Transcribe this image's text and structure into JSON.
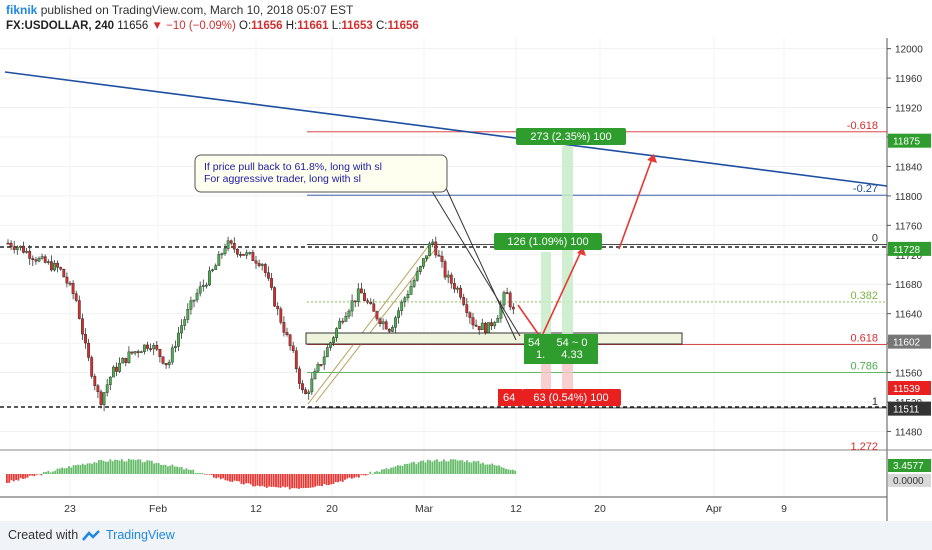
{
  "header": {
    "author": "fiknik",
    "published_text": "published on TradingView.com, March 10, 2018 05:07 EST",
    "symbol": "FX:USDOLLAR, 240",
    "last": "11656",
    "change": "−10 (−0.09%)",
    "open_label": "O:",
    "open": "11656",
    "high_label": "H:",
    "high": "11661",
    "low_label": "L:",
    "low": "11653",
    "close_label": "C:",
    "close": "11656"
  },
  "footer": {
    "created_with": "Created with",
    "brand": "TradingView"
  },
  "colors": {
    "up": "#4caf50",
    "down": "#d32f2f",
    "trendline": "#1e4fa0",
    "fib": "#d32f2f",
    "green_box": "#2e9d2e",
    "red_box": "#e82020"
  },
  "chart_data": {
    "type": "candlestick",
    "price_axis": {
      "ticks": [
        12000,
        11960,
        11920,
        11880,
        11840,
        11800,
        11760,
        11720,
        11680,
        11640,
        11600,
        11560,
        11520,
        11480
      ],
      "range": [
        11448,
        12012
      ]
    },
    "price_badges": [
      {
        "label": "11875",
        "value": 11875,
        "color": "#2e9d2e"
      },
      {
        "label": "11728",
        "value": 11728,
        "color": "#2e9d2e"
      },
      {
        "label": "11602",
        "value": 11602,
        "color": "#777777"
      },
      {
        "label": "11539",
        "value": 11539,
        "color": "#e82020"
      },
      {
        "label": "11511",
        "value": 11511,
        "color": "#333333"
      }
    ],
    "time_axis": [
      "23",
      "Feb",
      "12",
      "20",
      "Mar",
      "12",
      "20",
      "Apr",
      "9"
    ],
    "fib_levels": [
      {
        "label": "-0.618",
        "value": 11887,
        "color": "#d32f2f"
      },
      {
        "label": "-0.27",
        "value": 11801,
        "color": "#1e4fa0"
      },
      {
        "label": "0",
        "value": 11734,
        "color": "#333333"
      },
      {
        "label": "0.382",
        "value": 11656,
        "color": "#7cb342"
      },
      {
        "label": "0.618",
        "value": 11598,
        "color": "#d32f2f"
      },
      {
        "label": "0.786",
        "value": 11560,
        "color": "#4caf50"
      },
      {
        "label": "1",
        "value": 11512,
        "color": "#333333"
      },
      {
        "label": "1.272",
        "value": 11451,
        "color": "#d32f2f"
      }
    ],
    "annotation": [
      "If price pull back to 61.8%, long with sl",
      "For aggressive trader, long with sl"
    ],
    "target_labels": [
      "273 (2.35%) 100",
      "126 (1.09%) 100"
    ],
    "stop_labels": [
      "64",
      "63 (0.54%) 100"
    ],
    "rr_labels": {
      "left": "54",
      "left2": "1.",
      "right": "54 ~ 0",
      "right2": "4.33"
    },
    "oscillator": {
      "ticks": [
        "3.4577",
        "0.0000"
      ],
      "range": [
        -9,
        9
      ]
    }
  }
}
